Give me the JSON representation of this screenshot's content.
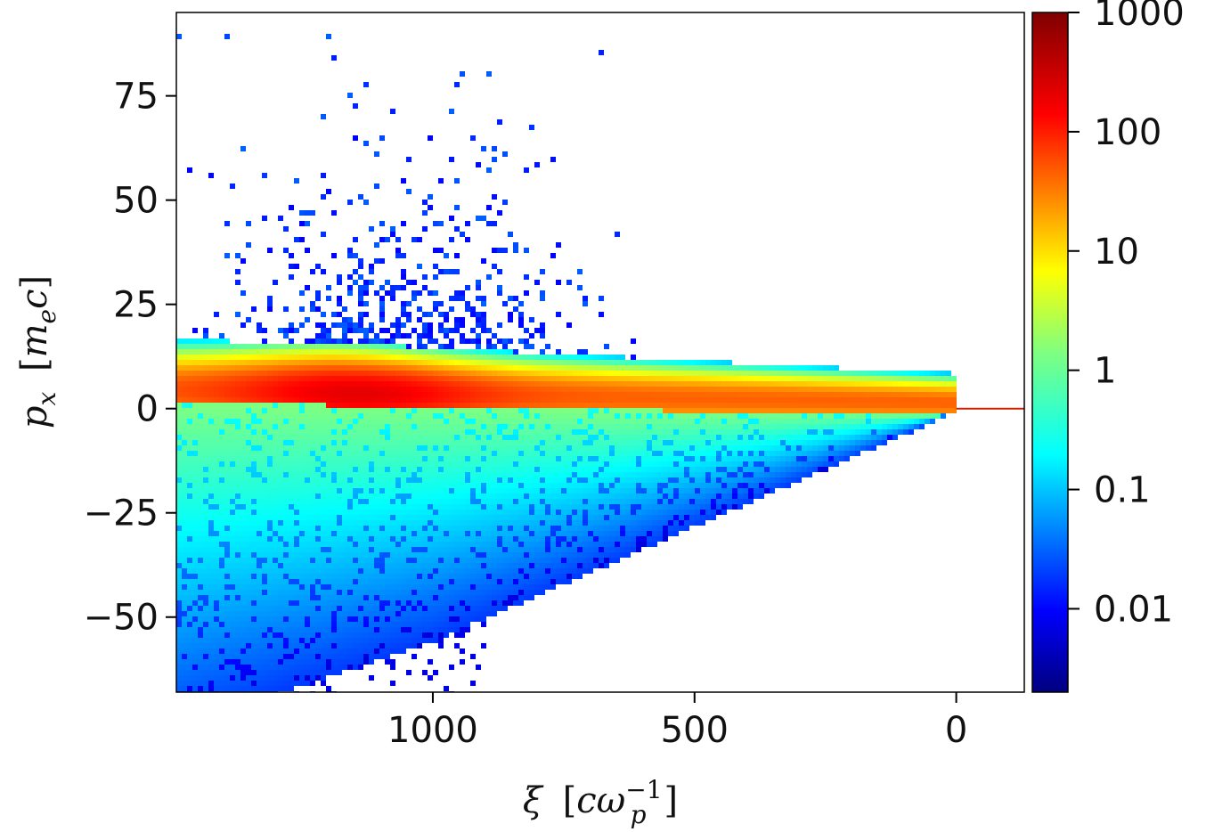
{
  "chart_data": {
    "type": "heatmap",
    "title": "",
    "xlabel": {
      "symbol": "ξ",
      "unit_open": "[",
      "unit_var": "cω",
      "unit_sub": "p",
      "unit_sup": "−1",
      "unit_close": "]"
    },
    "ylabel": {
      "symbol": "p",
      "symbol_sub": "x",
      "unit_open": "[",
      "unit_var": "m",
      "unit_sub": "e",
      "unit_var2": "c",
      "unit_close": "]"
    },
    "x_inverted": true,
    "xlim": [
      1490,
      -130
    ],
    "ylim": [
      -68,
      95
    ],
    "x_ticks": [
      1000,
      500,
      0
    ],
    "x_tick_labels": [
      "1000",
      "500",
      "0"
    ],
    "y_ticks": [
      75,
      50,
      25,
      0,
      -25,
      -50
    ],
    "y_tick_labels": [
      "75",
      "50",
      "25",
      "0",
      "−25",
      "−50"
    ],
    "colorbar": {
      "scale": "log",
      "range": [
        0.002,
        1000
      ],
      "colormap": "jet",
      "ticks": [
        1000,
        100,
        10,
        1,
        0.1,
        0.01
      ],
      "tick_labels": [
        "1000",
        "100",
        "10",
        "1",
        "0.1",
        "0.01"
      ]
    },
    "features": {
      "core_band": {
        "x_from": 1490,
        "x_to": 0,
        "center_y_at_x1490": 5,
        "center_y_at_x0": 2,
        "peak_x": 1150,
        "peak_y": 3
      },
      "lower_envelope": {
        "y_at_x0": 0,
        "y_at_x1000": -55,
        "y_at_x1300": -68
      },
      "upper_scatter_max": {
        "x": 1150,
        "y": 90
      },
      "beam_line": {
        "y": 0,
        "x_from": 0,
        "x_to": -130
      }
    }
  }
}
